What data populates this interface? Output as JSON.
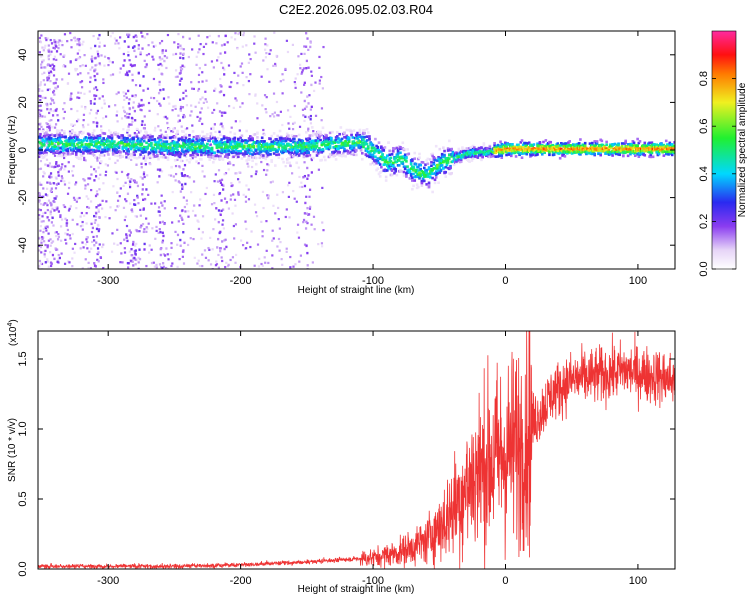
{
  "chart_data": [
    {
      "type": "heatmap",
      "title": "C2E2.2026.095.02.03.R04",
      "xlabel": "Height of straight line (km)",
      "ylabel": "Frequency (Hz)",
      "xlim": [
        -353,
        128
      ],
      "ylim": [
        -50,
        50
      ],
      "xticks": [
        "-300",
        "-200",
        "-100",
        "0",
        "100"
      ],
      "yticks": [
        "-40",
        "-20",
        "0",
        "20",
        "40"
      ],
      "colorbar": {
        "label": "Normalized spectral amplitude",
        "range": [
          0,
          1
        ],
        "ticks": [
          "0.0",
          "0.2",
          "0.4",
          "0.6",
          "0.8"
        ]
      },
      "ridge": [
        {
          "x": -350,
          "y": 3
        },
        {
          "x": -300,
          "y": 3
        },
        {
          "x": -250,
          "y": 2
        },
        {
          "x": -200,
          "y": 2
        },
        {
          "x": -150,
          "y": 2
        },
        {
          "x": -110,
          "y": 4
        },
        {
          "x": -100,
          "y": 0
        },
        {
          "x": -90,
          "y": -5
        },
        {
          "x": -80,
          "y": -3
        },
        {
          "x": -70,
          "y": -8
        },
        {
          "x": -60,
          "y": -10
        },
        {
          "x": -50,
          "y": -5
        },
        {
          "x": -30,
          "y": -1
        },
        {
          "x": -10,
          "y": 0
        },
        {
          "x": 0,
          "y": 1
        },
        {
          "x": 50,
          "y": 1
        },
        {
          "x": 100,
          "y": 1
        },
        {
          "x": 128,
          "y": 1
        }
      ],
      "grid": false
    },
    {
      "type": "line",
      "xlabel": "Height of straight line (km)",
      "ylabel": "SNR (10 * v/v)",
      "scale_label": "(x10",
      "scale_exp": "4",
      "scale_close": ")",
      "xlim": [
        -353,
        128
      ],
      "ylim": [
        0,
        1.7
      ],
      "xticks": [
        "-300",
        "-200",
        "-100",
        "0",
        "100"
      ],
      "yticks": [
        "0.0",
        "0.5",
        "1.0",
        "1.5"
      ],
      "color": "#ee3333",
      "envelope": [
        {
          "x": -353,
          "y": 0.02
        },
        {
          "x": -250,
          "y": 0.02
        },
        {
          "x": -200,
          "y": 0.03
        },
        {
          "x": -150,
          "y": 0.05
        },
        {
          "x": -100,
          "y": 0.08
        },
        {
          "x": -80,
          "y": 0.12
        },
        {
          "x": -60,
          "y": 0.2
        },
        {
          "x": -45,
          "y": 0.35
        },
        {
          "x": -35,
          "y": 0.5
        },
        {
          "x": -25,
          "y": 0.65
        },
        {
          "x": -15,
          "y": 0.75
        },
        {
          "x": -5,
          "y": 0.8
        },
        {
          "x": 5,
          "y": 0.85
        },
        {
          "x": 15,
          "y": 0.95
        },
        {
          "x": 25,
          "y": 1.1
        },
        {
          "x": 35,
          "y": 1.25
        },
        {
          "x": 50,
          "y": 1.35
        },
        {
          "x": 70,
          "y": 1.38
        },
        {
          "x": 90,
          "y": 1.42
        },
        {
          "x": 110,
          "y": 1.38
        },
        {
          "x": 128,
          "y": 1.35
        }
      ],
      "grid": false
    }
  ]
}
